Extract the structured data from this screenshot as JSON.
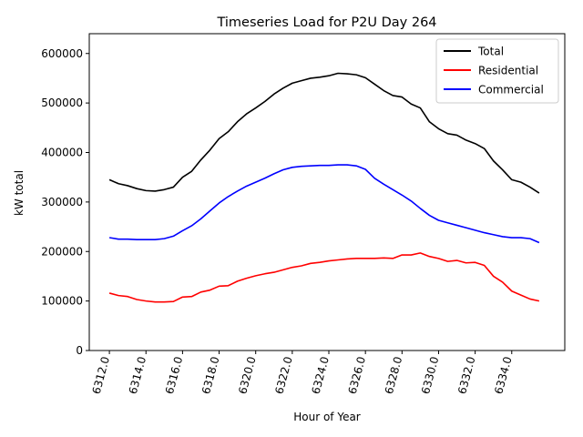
{
  "chart_data": {
    "type": "line",
    "title": "Timeseries Load for P2U   Day 264",
    "xlabel": "Hour of Year",
    "ylabel": "kW total",
    "xlim": [
      6310.9,
      6336.9
    ],
    "ylim": [
      0,
      640000
    ],
    "xticks": [
      6312,
      6314,
      6316,
      6318,
      6320,
      6322,
      6324,
      6326,
      6328,
      6330,
      6332,
      6334
    ],
    "xtick_labels": [
      "6312.0",
      "6314.0",
      "6316.0",
      "6318.0",
      "6320.0",
      "6322.0",
      "6324.0",
      "6326.0",
      "6328.0",
      "6330.0",
      "6332.0",
      "6334.0"
    ],
    "yticks": [
      0,
      100000,
      200000,
      300000,
      400000,
      500000,
      600000
    ],
    "ytick_labels": [
      "0",
      "100000",
      "200000",
      "300000",
      "400000",
      "500000",
      "600000"
    ],
    "legend_position": "top-right",
    "x": [
      6312,
      6312.5,
      6313,
      6313.5,
      6314,
      6314.5,
      6315,
      6315.5,
      6316,
      6316.5,
      6317,
      6317.5,
      6318,
      6318.5,
      6319,
      6319.5,
      6320,
      6320.5,
      6321,
      6321.5,
      6322,
      6322.5,
      6323,
      6323.5,
      6324,
      6324.5,
      6325,
      6325.5,
      6326,
      6326.5,
      6327,
      6327.5,
      6328,
      6328.5,
      6329,
      6329.5,
      6330,
      6330.5,
      6331,
      6331.5,
      6332,
      6332.5,
      6333,
      6333.5,
      6334,
      6334.5,
      6335,
      6335.5
    ],
    "series": [
      {
        "name": "Total",
        "color": "#000000",
        "values": [
          345000,
          337000,
          333000,
          327000,
          323000,
          322000,
          325000,
          330000,
          350000,
          362000,
          385000,
          405000,
          428000,
          442000,
          462000,
          478000,
          490000,
          503000,
          518000,
          530000,
          540000,
          545000,
          550000,
          552000,
          555000,
          560000,
          559000,
          557000,
          551000,
          538000,
          525000,
          515000,
          512000,
          498000,
          490000,
          462000,
          448000,
          438000,
          435000,
          425000,
          418000,
          408000,
          383000,
          365000,
          345000,
          340000,
          330000,
          318000
        ]
      },
      {
        "name": "Residential",
        "color": "#ff0000",
        "values": [
          116000,
          111000,
          109000,
          103000,
          100000,
          98000,
          98000,
          99000,
          108000,
          109000,
          118000,
          122000,
          130000,
          131000,
          140000,
          146000,
          151000,
          155000,
          158000,
          163000,
          168000,
          171000,
          176000,
          178000,
          181000,
          183000,
          185000,
          186000,
          186000,
          186000,
          187000,
          186000,
          193000,
          193000,
          197000,
          190000,
          186000,
          180000,
          182000,
          177000,
          178000,
          172000,
          150000,
          138000,
          120000,
          112000,
          104000,
          100000
        ]
      },
      {
        "name": "Commercial",
        "color": "#0000ff",
        "values": [
          228000,
          225000,
          225000,
          224000,
          224000,
          224000,
          226000,
          231000,
          242000,
          252000,
          266000,
          282000,
          298000,
          311000,
          322000,
          332000,
          340000,
          348000,
          357000,
          365000,
          370000,
          372000,
          373000,
          374000,
          374000,
          375000,
          375000,
          373000,
          366000,
          348000,
          336000,
          325000,
          314000,
          302000,
          287000,
          273000,
          263000,
          258000,
          253000,
          248000,
          243000,
          238000,
          234000,
          230000,
          228000,
          228000,
          226000,
          218000
        ]
      }
    ]
  }
}
